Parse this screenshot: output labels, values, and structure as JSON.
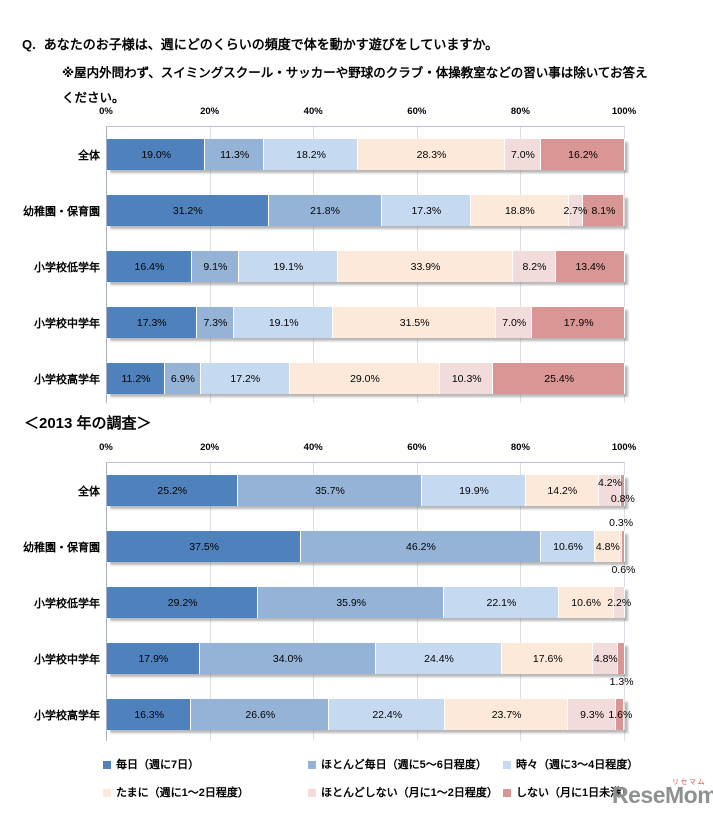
{
  "header": {
    "q_prefix": "Q.",
    "title": "あなたのお子様は、週にどのくらいの頻度で体を動かす遊びをしていますか。",
    "note_line1": "※屋内外問わず、スイミングスクール・サッカーや野球のクラブ・体操教室などの習い事は除いてお答え",
    "note_line2": "ください。"
  },
  "legend": {
    "position": "bottom",
    "items": [
      {
        "label": "毎日（週に7日）",
        "color": "#4F81BD"
      },
      {
        "label": "ほとんど毎日（週に5～6日程度）",
        "color": "#95B3D7"
      },
      {
        "label": "時々（週に3～4日程度）",
        "color": "#C5D9F1"
      },
      {
        "label": "たまに（週に1～2日程度）",
        "color": "#FDE9D9"
      },
      {
        "label": "ほとんどしない（月に1～2日程度）",
        "color": "#F2DCDB"
      },
      {
        "label": "しない（月に1日未満）",
        "color": "#D99694"
      }
    ]
  },
  "chart_data": [
    {
      "type": "bar",
      "orientation": "horizontal",
      "stacked": true,
      "title": "",
      "xlim": [
        0,
        100
      ],
      "grid": true,
      "x_tick_labels": [
        "0%",
        "20%",
        "40%",
        "60%",
        "80%",
        "100%"
      ],
      "categories": [
        "全体",
        "幼稚園・保育園",
        "小学校低学年",
        "小学校中学年",
        "小学校高学年"
      ],
      "series": [
        {
          "name": "毎日（週に7日）",
          "values": [
            19.0,
            31.2,
            16.4,
            17.3,
            11.2
          ]
        },
        {
          "name": "ほとんど毎日（週に5～6日程度）",
          "values": [
            11.3,
            21.8,
            9.1,
            7.3,
            6.9
          ]
        },
        {
          "name": "時々（週に3～4日程度）",
          "values": [
            18.2,
            17.3,
            19.1,
            19.1,
            17.2
          ]
        },
        {
          "name": "たまに（週に1～2日程度）",
          "values": [
            28.3,
            18.8,
            33.9,
            31.5,
            29.0
          ]
        },
        {
          "name": "ほとんどしない（月に1～2日程度）",
          "values": [
            7.0,
            2.7,
            8.2,
            7.0,
            10.3
          ]
        },
        {
          "name": "しない（月に1日未満）",
          "values": [
            16.2,
            8.1,
            13.4,
            17.9,
            25.4
          ]
        }
      ],
      "label_pos_overrides": []
    },
    {
      "type": "bar",
      "orientation": "horizontal",
      "stacked": true,
      "title": "＜2013 年の調査＞",
      "xlim": [
        0,
        100
      ],
      "grid": true,
      "x_tick_labels": [
        "0%",
        "20%",
        "40%",
        "60%",
        "80%",
        "100%"
      ],
      "categories": [
        "全体",
        "幼稚園・保育園",
        "小学校低学年",
        "小学校中学年",
        "小学校高学年"
      ],
      "series": [
        {
          "name": "毎日（週に7日）",
          "values": [
            25.2,
            37.5,
            29.2,
            17.9,
            16.3
          ]
        },
        {
          "name": "ほとんど毎日（週に5～6日程度）",
          "values": [
            35.7,
            46.2,
            35.9,
            34.0,
            26.6
          ]
        },
        {
          "name": "時々（週に3～4日程度）",
          "values": [
            19.9,
            10.6,
            22.1,
            24.4,
            22.4
          ]
        },
        {
          "name": "たまに（週に1～2日程度）",
          "values": [
            14.2,
            4.8,
            10.6,
            17.6,
            23.7
          ]
        },
        {
          "name": "ほとんどしない（月に1～2日程度）",
          "values": [
            4.2,
            0.3,
            2.2,
            4.8,
            9.3
          ]
        },
        {
          "name": "しない（月に1日未満）",
          "values": [
            0.8,
            0.6,
            0.0,
            1.3,
            1.6
          ]
        }
      ],
      "label_pos_overrides": [
        {
          "row": 0,
          "series": 4,
          "pos": "up"
        },
        {
          "row": 0,
          "series": 5,
          "pos": "down"
        },
        {
          "row": 1,
          "series": 4,
          "pos": "above"
        },
        {
          "row": 1,
          "series": 5,
          "pos": "below"
        },
        {
          "row": 3,
          "series": 5,
          "pos": "below"
        }
      ]
    }
  ],
  "watermark": {
    "text": "ReseMom",
    "suffix": ".",
    "ruby": "リセマム"
  }
}
